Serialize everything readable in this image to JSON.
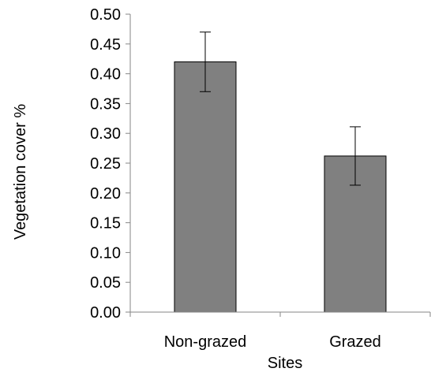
{
  "chart_data": {
    "type": "bar",
    "title": "",
    "xlabel": "Sites",
    "ylabel": "Vegetation cover %",
    "categories": [
      "Non-grazed",
      "Grazed"
    ],
    "values": [
      0.42,
      0.262
    ],
    "error_bars": {
      "upper": [
        0.47,
        0.311
      ],
      "lower": [
        0.37,
        0.213
      ]
    },
    "ylim": [
      0,
      0.5
    ],
    "yticks": [
      "0.00",
      "0.05",
      "0.10",
      "0.15",
      "0.20",
      "0.25",
      "0.30",
      "0.35",
      "0.40",
      "0.45",
      "0.50"
    ],
    "grid": false,
    "legend": "none",
    "bar_color": "#808080",
    "bar_edge_color": "#000000",
    "axis_color": "#868686"
  }
}
